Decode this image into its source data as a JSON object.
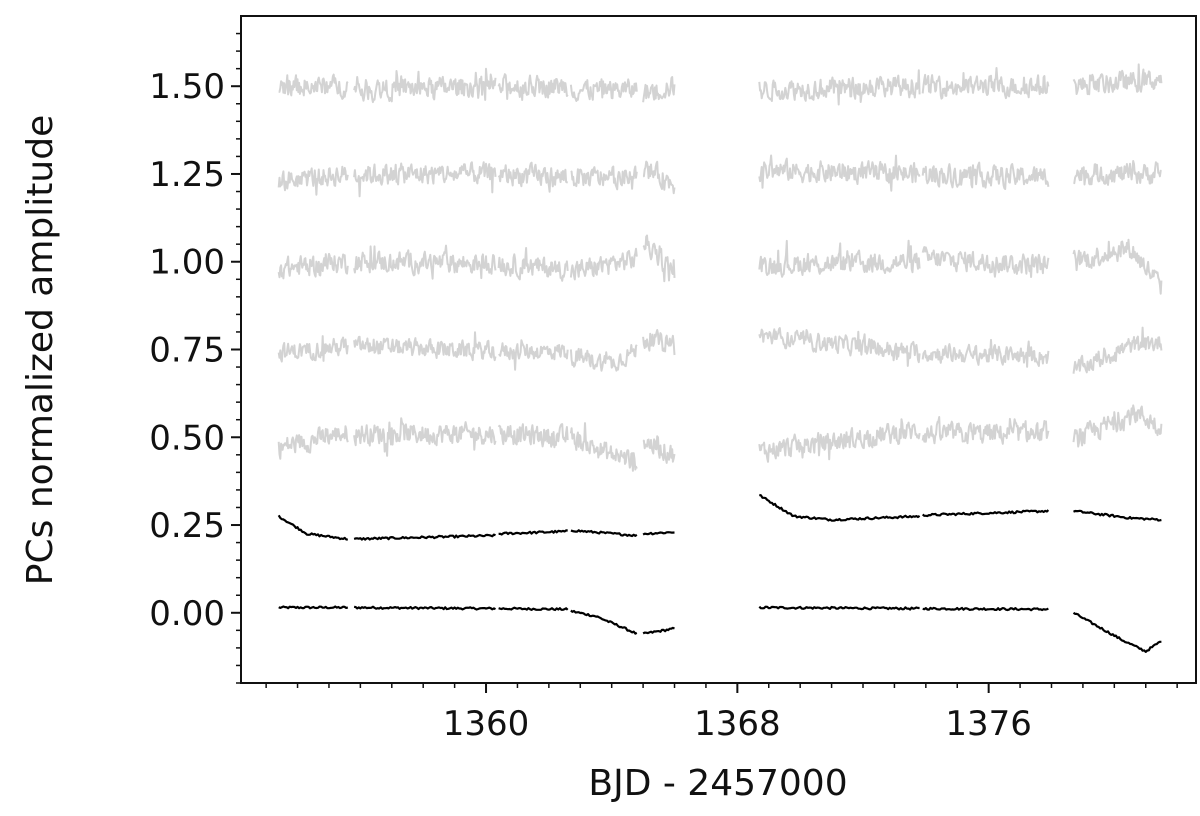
{
  "chart_data": {
    "type": "line",
    "title": "",
    "xlabel": "BJD - 2457000",
    "ylabel": "PCs normalized amplitude",
    "xlim": [
      1352.2,
      1382.6
    ],
    "ylim": [
      -0.2,
      1.7
    ],
    "x_ticks": [
      1360,
      1368,
      1376
    ],
    "x_tick_labels": [
      "1360",
      "1368",
      "1376"
    ],
    "y_ticks": [
      0.0,
      0.25,
      0.5,
      0.75,
      1.0,
      1.25,
      1.5
    ],
    "y_tick_labels": [
      "0.00",
      "0.25",
      "0.50",
      "0.75",
      "1.00",
      "1.25",
      "1.50"
    ],
    "grid": false,
    "legend": "none",
    "segments": [
      [
        1353.4,
        1355.6
      ],
      [
        1355.8,
        1360.3
      ],
      [
        1360.4,
        1362.6
      ],
      [
        1362.7,
        1364.8
      ],
      [
        1365.0,
        1366.0
      ],
      [
        1368.7,
        1373.8
      ],
      [
        1373.9,
        1377.9
      ],
      [
        1378.7,
        1381.5
      ]
    ],
    "series": [
      {
        "color": "#000000",
        "style": "smooth",
        "points": [
          [
            1353.4,
            0.015
          ],
          [
            1355.6,
            0.015
          ],
          [
            1355.8,
            0.015
          ],
          [
            1360.3,
            0.012
          ],
          [
            1360.4,
            0.012
          ],
          [
            1362.6,
            0.01
          ],
          [
            1362.7,
            0.005
          ],
          [
            1363.5,
            -0.01
          ],
          [
            1364.3,
            -0.04
          ],
          [
            1364.8,
            -0.06
          ],
          [
            1365.0,
            -0.06
          ],
          [
            1366.0,
            -0.045
          ],
          [
            1368.7,
            0.015
          ],
          [
            1373.8,
            0.012
          ],
          [
            1373.9,
            0.012
          ],
          [
            1377.9,
            0.01
          ],
          [
            1378.7,
            0.0
          ],
          [
            1379.5,
            -0.04
          ],
          [
            1380.3,
            -0.08
          ],
          [
            1381.0,
            -0.11
          ],
          [
            1381.5,
            -0.08
          ]
        ]
      },
      {
        "color": "#000000",
        "style": "smooth",
        "points": [
          [
            1353.4,
            0.275
          ],
          [
            1354.3,
            0.225
          ],
          [
            1355.6,
            0.21
          ],
          [
            1355.8,
            0.21
          ],
          [
            1360.3,
            0.22
          ],
          [
            1360.4,
            0.225
          ],
          [
            1362.6,
            0.232
          ],
          [
            1362.7,
            0.235
          ],
          [
            1364.8,
            0.22
          ],
          [
            1365.0,
            0.225
          ],
          [
            1366.0,
            0.23
          ],
          [
            1368.7,
            0.335
          ],
          [
            1369.8,
            0.275
          ],
          [
            1371.0,
            0.265
          ],
          [
            1373.8,
            0.275
          ],
          [
            1373.9,
            0.278
          ],
          [
            1377.9,
            0.29
          ],
          [
            1378.7,
            0.29
          ],
          [
            1380.5,
            0.27
          ],
          [
            1381.5,
            0.265
          ]
        ]
      },
      {
        "color": "#d3d3d3",
        "style": "noisy",
        "amplitude": 0.035,
        "points": [
          [
            1353.4,
            0.47
          ],
          [
            1355.6,
            0.515
          ],
          [
            1355.8,
            0.51
          ],
          [
            1360.3,
            0.51
          ],
          [
            1360.4,
            0.51
          ],
          [
            1362.6,
            0.5
          ],
          [
            1362.7,
            0.5
          ],
          [
            1364.0,
            0.45
          ],
          [
            1364.8,
            0.43
          ],
          [
            1365.0,
            0.49
          ],
          [
            1366.0,
            0.45
          ],
          [
            1368.7,
            0.46
          ],
          [
            1373.8,
            0.52
          ],
          [
            1373.9,
            0.51
          ],
          [
            1377.9,
            0.51
          ],
          [
            1378.7,
            0.49
          ],
          [
            1380.7,
            0.57
          ],
          [
            1381.5,
            0.53
          ]
        ]
      },
      {
        "color": "#d3d3d3",
        "style": "noisy",
        "amplitude": 0.03,
        "points": [
          [
            1353.4,
            0.74
          ],
          [
            1355.6,
            0.76
          ],
          [
            1355.8,
            0.76
          ],
          [
            1360.3,
            0.745
          ],
          [
            1360.4,
            0.745
          ],
          [
            1362.6,
            0.745
          ],
          [
            1362.7,
            0.73
          ],
          [
            1364.0,
            0.71
          ],
          [
            1364.8,
            0.75
          ],
          [
            1365.0,
            0.78
          ],
          [
            1366.0,
            0.77
          ],
          [
            1368.7,
            0.79
          ],
          [
            1373.8,
            0.74
          ],
          [
            1373.9,
            0.74
          ],
          [
            1377.9,
            0.73
          ],
          [
            1378.7,
            0.69
          ],
          [
            1380.5,
            0.76
          ],
          [
            1381.5,
            0.77
          ]
        ]
      },
      {
        "color": "#d3d3d3",
        "style": "noisy",
        "amplitude": 0.035,
        "points": [
          [
            1353.4,
            0.98
          ],
          [
            1355.6,
            1.0
          ],
          [
            1355.8,
            1.0
          ],
          [
            1360.3,
            0.995
          ],
          [
            1360.4,
            0.99
          ],
          [
            1362.6,
            0.98
          ],
          [
            1362.7,
            0.97
          ],
          [
            1364.8,
            1.01
          ],
          [
            1365.0,
            1.06
          ],
          [
            1366.0,
            0.97
          ],
          [
            1368.7,
            0.99
          ],
          [
            1373.8,
            1.0
          ],
          [
            1373.9,
            1.01
          ],
          [
            1377.9,
            0.99
          ],
          [
            1378.7,
            1.0
          ],
          [
            1380.5,
            1.04
          ],
          [
            1381.5,
            0.93
          ]
        ]
      },
      {
        "color": "#d3d3d3",
        "style": "noisy",
        "amplitude": 0.035,
        "points": [
          [
            1353.4,
            1.23
          ],
          [
            1355.6,
            1.25
          ],
          [
            1355.8,
            1.25
          ],
          [
            1360.3,
            1.25
          ],
          [
            1360.4,
            1.25
          ],
          [
            1362.6,
            1.24
          ],
          [
            1362.7,
            1.24
          ],
          [
            1364.8,
            1.24
          ],
          [
            1365.0,
            1.27
          ],
          [
            1366.0,
            1.22
          ],
          [
            1368.7,
            1.26
          ],
          [
            1373.8,
            1.25
          ],
          [
            1373.9,
            1.25
          ],
          [
            1377.9,
            1.24
          ],
          [
            1378.7,
            1.25
          ],
          [
            1381.5,
            1.25
          ]
        ]
      },
      {
        "color": "#d3d3d3",
        "style": "noisy",
        "amplitude": 0.035,
        "points": [
          [
            1353.4,
            1.5
          ],
          [
            1355.6,
            1.5
          ],
          [
            1355.8,
            1.49
          ],
          [
            1360.3,
            1.5
          ],
          [
            1360.4,
            1.5
          ],
          [
            1362.6,
            1.5
          ],
          [
            1362.7,
            1.49
          ],
          [
            1364.8,
            1.49
          ],
          [
            1365.0,
            1.48
          ],
          [
            1366.0,
            1.5
          ],
          [
            1368.7,
            1.49
          ],
          [
            1373.8,
            1.5
          ],
          [
            1373.9,
            1.5
          ],
          [
            1377.9,
            1.5
          ],
          [
            1378.7,
            1.5
          ],
          [
            1381.5,
            1.52
          ]
        ]
      }
    ]
  }
}
